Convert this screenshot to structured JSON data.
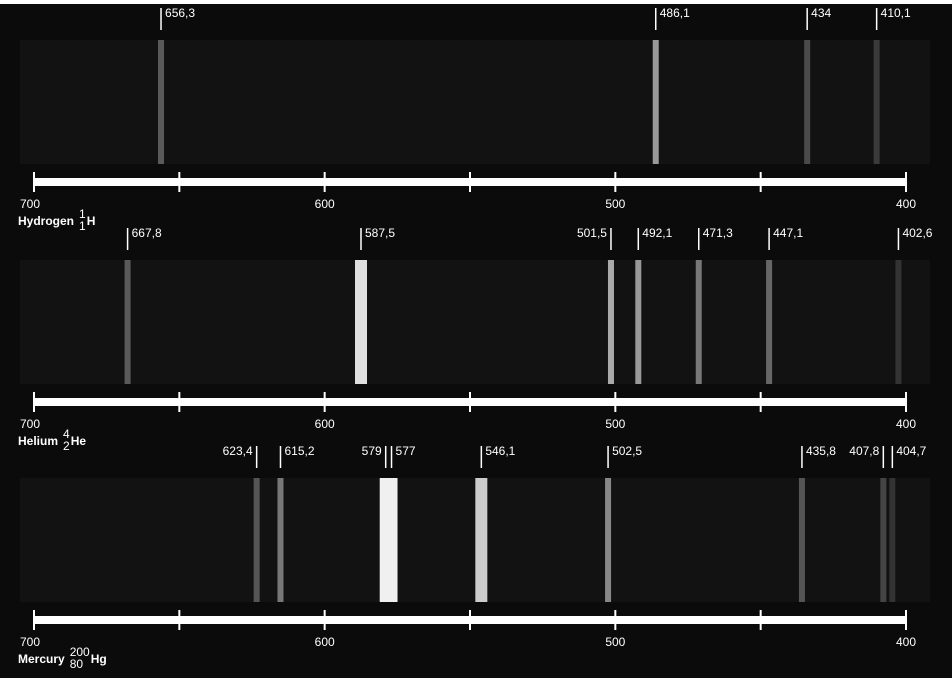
{
  "chart_data": [
    {
      "type": "spectrum",
      "element": "Hydrogen",
      "mass_number": 1,
      "atomic_number": 1,
      "symbol": "H",
      "x": [
        656.3,
        486.1,
        434,
        410.1
      ],
      "value_labels": [
        "656,3",
        "486,1",
        "434",
        "410,1"
      ],
      "colors": [
        "#5a5a5a",
        "#9a9a9a",
        "#4a4a4a",
        "#3a3a3a"
      ],
      "xlim": [
        700,
        400
      ],
      "xticks": [
        700,
        600,
        500,
        400
      ],
      "minor_xticks": [
        650,
        550,
        450
      ]
    },
    {
      "type": "spectrum",
      "element": "Helium",
      "mass_number": 4,
      "atomic_number": 2,
      "symbol": "He",
      "x": [
        667.8,
        587.5,
        501.5,
        492.1,
        471.3,
        447.1,
        402.6
      ],
      "value_labels": [
        "667,8",
        "587,5",
        "501,5",
        "492,1",
        "471,3",
        "447,1",
        "402,6"
      ],
      "colors": [
        "#5a5a5a",
        "#e0e0e0",
        "#aaaaaa",
        "#999999",
        "#777777",
        "#666666",
        "#333333"
      ],
      "xlim": [
        700,
        400
      ],
      "xticks": [
        700,
        600,
        500,
        400
      ],
      "minor_xticks": [
        650,
        550,
        450
      ]
    },
    {
      "type": "spectrum",
      "element": "Mercury",
      "mass_number": 200,
      "atomic_number": 80,
      "symbol": "Hg",
      "x": [
        623.4,
        615.2,
        579,
        577,
        546.1,
        502.5,
        435.8,
        407.8,
        404.7
      ],
      "value_labels": [
        "623,4",
        "615,2",
        "579",
        "577",
        "546,1",
        "502,5",
        "435,8",
        "407,8",
        "404,7"
      ],
      "colors": [
        "#555555",
        "#777777",
        "#f0f0f0",
        "#f0f0f0",
        "#cccccc",
        "#888888",
        "#555555",
        "#444444",
        "#333333"
      ],
      "xlim": [
        700,
        400
      ],
      "xticks": [
        700,
        600,
        500,
        400
      ],
      "minor_xticks": [
        650,
        550,
        450
      ]
    }
  ]
}
